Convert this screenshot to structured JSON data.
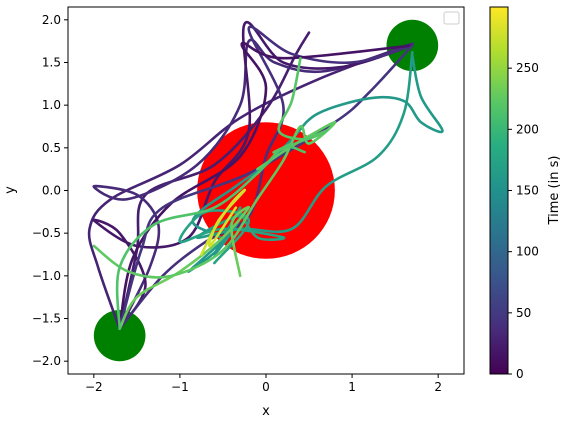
{
  "chart_data": {
    "type": "scatter",
    "title": "",
    "xlabel": "x",
    "ylabel": "y",
    "xlim": [
      -2.3,
      2.3
    ],
    "ylim": [
      -2.15,
      2.15
    ],
    "xticks": [
      -2,
      -1,
      0,
      1,
      2
    ],
    "yticks": [
      -2.0,
      -1.5,
      -1.0,
      -0.5,
      0.0,
      0.5,
      1.0,
      1.5,
      2.0
    ],
    "grid": false,
    "legend": {
      "placement": "top-right",
      "entries": []
    },
    "colorbar": {
      "label": "Time (in s)",
      "colormap": "viridis",
      "range": [
        0,
        300
      ],
      "ticks": [
        0,
        50,
        100,
        150,
        200,
        250
      ]
    },
    "circles": [
      {
        "name": "obstacle",
        "center": [
          0.0,
          0.0
        ],
        "radius": 0.8,
        "color": "#ff0000"
      },
      {
        "name": "start-goal-bottom-left",
        "center": [
          -1.7,
          -1.7
        ],
        "radius": 0.3,
        "color": "#008000"
      },
      {
        "name": "start-goal-top-right",
        "center": [
          1.7,
          1.7
        ],
        "radius": 0.3,
        "color": "#008000"
      }
    ],
    "series": [
      {
        "time": 30,
        "points": [
          [
            -1.7,
            -1.62
          ],
          [
            -1.95,
            -0.9
          ],
          [
            -2.05,
            -0.45
          ],
          [
            -1.8,
            -0.1
          ],
          [
            -1.0,
            0.3
          ],
          [
            -0.3,
            0.85
          ],
          [
            0.6,
            1.3
          ],
          [
            1.7,
            1.72
          ]
        ]
      },
      {
        "time": 25,
        "points": [
          [
            -1.7,
            -1.62
          ],
          [
            -1.5,
            -0.7
          ],
          [
            -1.4,
            -0.05
          ],
          [
            -0.6,
            0.3
          ],
          [
            0.0,
            0.95
          ],
          [
            0.35,
            1.6
          ],
          [
            0.5,
            1.85
          ]
        ]
      },
      {
        "time": 35,
        "points": [
          [
            -1.7,
            -1.62
          ],
          [
            -1.35,
            -0.9
          ],
          [
            -1.25,
            -0.4
          ],
          [
            -1.5,
            -0.05
          ],
          [
            -2.0,
            0.05
          ],
          [
            -1.6,
            -0.1
          ],
          [
            -0.8,
            0.3
          ],
          [
            -0.3,
            1.0
          ],
          [
            -0.2,
            1.75
          ],
          [
            0.1,
            1.5
          ],
          [
            0.7,
            1.4
          ],
          [
            1.7,
            1.72
          ]
        ]
      },
      {
        "time": 20,
        "points": [
          [
            -1.7,
            -1.62
          ],
          [
            -1.4,
            -1.1
          ],
          [
            -1.7,
            -0.5
          ],
          [
            -2.0,
            -0.35
          ],
          [
            -1.5,
            -0.65
          ],
          [
            -0.9,
            -0.55
          ],
          [
            -0.6,
            0.1
          ],
          [
            -0.2,
            0.7
          ],
          [
            -0.25,
            1.95
          ],
          [
            0.2,
            1.5
          ],
          [
            0.9,
            1.45
          ],
          [
            1.7,
            1.7
          ]
        ]
      },
      {
        "time": 40,
        "points": [
          [
            -1.7,
            -1.62
          ],
          [
            -1.2,
            -1.0
          ],
          [
            -0.7,
            -0.6
          ],
          [
            -0.2,
            -0.3
          ],
          [
            0.0,
            0.4
          ],
          [
            0.2,
            1.0
          ],
          [
            -0.2,
            1.9
          ],
          [
            0.3,
            1.6
          ],
          [
            1.0,
            1.5
          ],
          [
            1.7,
            1.7
          ]
        ]
      },
      {
        "time": 15,
        "points": [
          [
            -1.7,
            -1.62
          ],
          [
            -1.55,
            -0.8
          ],
          [
            -1.1,
            -0.15
          ],
          [
            -0.3,
            0.4
          ],
          [
            0.0,
            1.2
          ],
          [
            -0.28,
            1.72
          ],
          [
            0.2,
            1.55
          ],
          [
            1.7,
            1.7
          ]
        ]
      },
      {
        "time": 45,
        "points": [
          [
            -1.7,
            -1.62
          ],
          [
            -1.45,
            -0.7
          ],
          [
            -1.2,
            -0.2
          ],
          [
            -0.2,
            0.2
          ],
          [
            0.8,
            0.8
          ],
          [
            1.2,
            1.15
          ],
          [
            1.7,
            1.7
          ]
        ]
      },
      {
        "time": 165,
        "points": [
          [
            1.7,
            1.62
          ],
          [
            1.6,
            0.9
          ],
          [
            1.3,
            0.4
          ],
          [
            0.7,
            0.05
          ],
          [
            0.3,
            -0.45
          ],
          [
            -0.3,
            -0.45
          ],
          [
            -0.8,
            -0.55
          ],
          [
            -0.3,
            -0.3
          ],
          [
            -0.6,
            -0.75
          ],
          [
            -0.3,
            -0.2
          ]
        ]
      },
      {
        "time": 160,
        "points": [
          [
            1.7,
            1.58
          ],
          [
            1.8,
            1.1
          ],
          [
            2.05,
            0.7
          ],
          [
            1.8,
            0.8
          ],
          [
            1.6,
            1.05
          ],
          [
            1.2,
            1.08
          ],
          [
            0.6,
            0.9
          ],
          [
            0.3,
            0.6
          ],
          [
            0.0,
            0.3
          ],
          [
            -0.35,
            0.05
          ],
          [
            -0.85,
            -0.35
          ],
          [
            -0.5,
            -0.6
          ],
          [
            -0.9,
            -0.95
          ],
          [
            -0.4,
            -0.5
          ]
        ]
      },
      {
        "time": 175,
        "points": [
          [
            -0.3,
            -0.25
          ],
          [
            -0.1,
            -0.55
          ],
          [
            0.2,
            -0.55
          ],
          [
            -0.5,
            -0.45
          ],
          [
            -1.0,
            -0.6
          ],
          [
            -0.7,
            -0.25
          ],
          [
            -0.2,
            -0.35
          ],
          [
            -0.6,
            -0.85
          ]
        ]
      },
      {
        "time": 230,
        "points": [
          [
            -1.7,
            -1.62
          ],
          [
            -1.5,
            -1.25
          ],
          [
            -1.0,
            -0.95
          ],
          [
            -0.5,
            -0.55
          ],
          [
            -0.2,
            -0.2
          ],
          [
            -0.4,
            -0.4
          ],
          [
            -0.3,
            -1.0
          ]
        ]
      },
      {
        "time": 225,
        "points": [
          [
            -2.0,
            -0.65
          ],
          [
            -1.6,
            -0.95
          ],
          [
            -1.1,
            -1.0
          ],
          [
            -0.5,
            -0.7
          ],
          [
            -0.1,
            -0.1
          ],
          [
            0.2,
            0.35
          ],
          [
            0.4,
            0.75
          ],
          [
            0.5,
            0.55
          ],
          [
            0.8,
            0.8
          ],
          [
            0.35,
            0.55
          ],
          [
            -0.1,
            0.25
          ]
        ]
      },
      {
        "time": 220,
        "points": [
          [
            0.4,
            1.55
          ],
          [
            0.3,
            1.05
          ],
          [
            0.15,
            0.7
          ],
          [
            0.45,
            0.6
          ],
          [
            0.7,
            0.7
          ],
          [
            0.1,
            0.45
          ],
          [
            0.3,
            0.55
          ]
        ]
      },
      {
        "time": 215,
        "points": [
          [
            -1.7,
            -1.62
          ],
          [
            -1.7,
            -0.9
          ],
          [
            -1.3,
            -0.4
          ],
          [
            -0.6,
            -0.2
          ],
          [
            -0.1,
            0.2
          ],
          [
            0.2,
            0.5
          ],
          [
            0.45,
            0.45
          ]
        ]
      },
      {
        "time": 280,
        "points": [
          [
            -0.75,
            -0.75
          ],
          [
            -0.6,
            -0.45
          ],
          [
            -0.4,
            -0.15
          ],
          [
            -0.25,
            0.0
          ],
          [
            -0.55,
            -0.35
          ],
          [
            -0.65,
            -0.65
          ],
          [
            -0.35,
            -0.2
          ]
        ]
      }
    ]
  }
}
